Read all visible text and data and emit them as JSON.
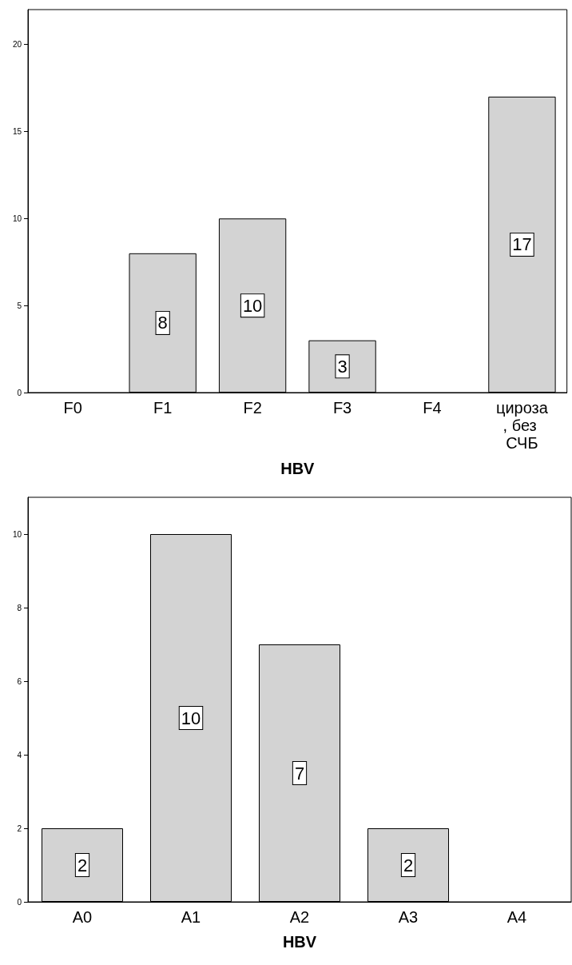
{
  "chart_data": [
    {
      "type": "bar",
      "xlabel": "HBV",
      "categories": [
        "F0",
        "F1",
        "F2",
        "F3",
        "F4",
        "цироза, без СЧБ"
      ],
      "values": [
        0,
        8,
        10,
        3,
        0,
        17
      ],
      "value_labels": [
        null,
        "8",
        "10",
        "3",
        null,
        "17"
      ],
      "color": "#d3d3d3",
      "ylim": [
        0,
        22
      ],
      "yticks": [
        0,
        5,
        10,
        15,
        20
      ],
      "grid": false
    },
    {
      "type": "bar",
      "xlabel": "HBV",
      "categories": [
        "A0",
        "A1",
        "A2",
        "A3",
        "A4"
      ],
      "values": [
        2,
        10,
        7,
        2,
        0
      ],
      "value_labels": [
        "2",
        "10",
        "7",
        "2",
        null
      ],
      "color": "#d3d3d3",
      "ylim": [
        0,
        11
      ],
      "yticks": [
        0,
        2,
        4,
        6,
        8,
        10
      ],
      "grid": false
    }
  ]
}
